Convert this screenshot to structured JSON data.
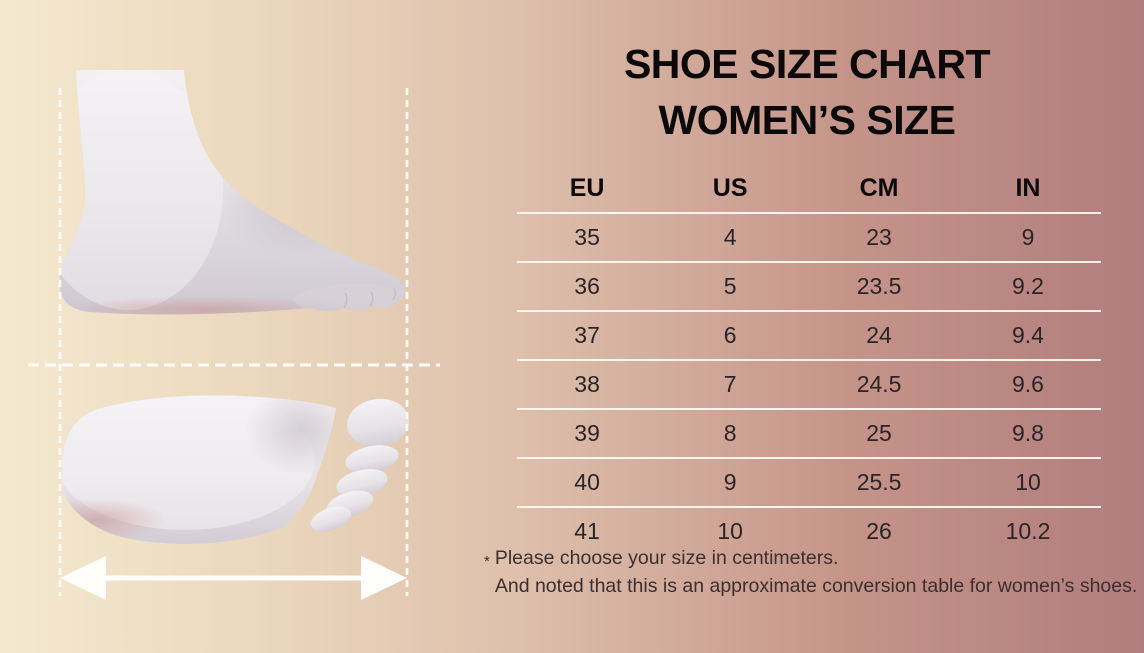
{
  "title": {
    "line1": "SHOE SIZE CHART",
    "line2": "WOMEN’S SIZE"
  },
  "size_table": {
    "headers": [
      "EU",
      "US",
      "CM",
      "IN"
    ],
    "rows": [
      [
        "35",
        "4",
        "23",
        "9"
      ],
      [
        "36",
        "5",
        "23.5",
        "9.2"
      ],
      [
        "37",
        "6",
        "24",
        "9.4"
      ],
      [
        "38",
        "7",
        "24.5",
        "9.6"
      ],
      [
        "39",
        "8",
        "25",
        "9.8"
      ],
      [
        "40",
        "9",
        "25.5",
        "10"
      ],
      [
        "41",
        "10",
        "26",
        "10.2"
      ]
    ]
  },
  "footnote": {
    "marker": "*",
    "line1": "Please choose your size in centimeters.",
    "line2": "And noted that this is an approximate conversion table for women’s shoes."
  },
  "colors": {
    "background_gradient_start": "#F4E9CF",
    "background_gradient_end": "#B17D7E",
    "guide_line": "#FFFDF8",
    "table_divider": "#FFFCF5",
    "title_text": "#0B0909",
    "cell_text": "#2B2427",
    "footnote_text": "#3B2F2F"
  },
  "icons": {
    "foot_side_view": "side view of a 3D foot model",
    "foot_top_view": "top view of a 3D foot model",
    "length_arrow": "double-headed measurement arrow",
    "guide_lines": "dashed heel/toe/ball measurement guides"
  }
}
